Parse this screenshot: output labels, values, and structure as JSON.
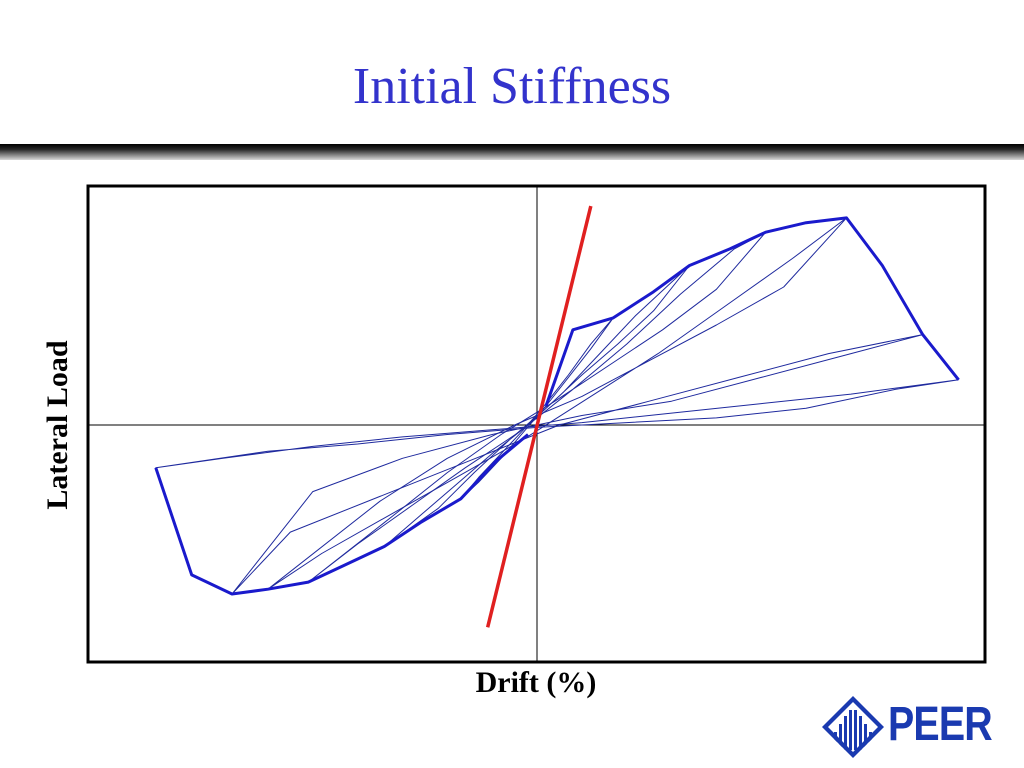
{
  "slide": {
    "title": "Initial Stiffness"
  },
  "logo": {
    "text": "PEER",
    "color": "#1a3ab0"
  },
  "colors": {
    "title": "#3333cc",
    "hysteresis": "#1f2a9e",
    "envelope": "#1a1acc",
    "stiffness_line": "#e02020",
    "axes": "#000000"
  },
  "chart_data": {
    "type": "line",
    "xlabel": "Drift (%)",
    "ylabel": "Lateral Load",
    "xlim": [
      -1,
      1
    ],
    "ylim": [
      -1,
      1
    ],
    "grid": false,
    "units_note": "normalized",
    "series": [
      {
        "role": "envelope-positive",
        "x": [
          0.02,
          0.08,
          0.17,
          0.26,
          0.34,
          0.43,
          0.51,
          0.6,
          0.69,
          0.77,
          0.86,
          0.94
        ],
        "y": [
          0.08,
          0.4,
          0.45,
          0.56,
          0.67,
          0.74,
          0.81,
          0.85,
          0.87,
          0.67,
          0.38,
          0.19
        ]
      },
      {
        "role": "envelope-negative",
        "x": [
          -0.85,
          -0.77,
          -0.68,
          -0.6,
          -0.51,
          -0.43,
          -0.34,
          -0.26,
          -0.17,
          -0.09,
          -0.02
        ],
        "y": [
          -0.18,
          -0.63,
          -0.71,
          -0.69,
          -0.66,
          -0.59,
          -0.51,
          -0.41,
          -0.31,
          -0.15,
          -0.04
        ]
      },
      {
        "role": "hysteresis-loop",
        "x": [
          0.94,
          0.8,
          0.6,
          0.4,
          0.2,
          0,
          -0.2,
          -0.4,
          -0.6,
          -0.85,
          -0.7,
          -0.5,
          -0.3,
          -0.1,
          0.1,
          0.3,
          0.5,
          0.7,
          0.94
        ],
        "y": [
          0.19,
          0.15,
          0.07,
          0.03,
          0.01,
          -0.01,
          -0.04,
          -0.08,
          -0.11,
          -0.18,
          -0.14,
          -0.09,
          -0.05,
          -0.02,
          0.01,
          0.05,
          0.09,
          0.13,
          0.19
        ]
      },
      {
        "role": "hysteresis-loop",
        "x": [
          0.86,
          0.7,
          0.5,
          0.3,
          0.1,
          -0.1,
          -0.3,
          -0.5,
          -0.68,
          -0.55,
          -0.35,
          -0.15,
          0.05,
          0.25,
          0.45,
          0.65,
          0.86
        ],
        "y": [
          0.38,
          0.3,
          0.2,
          0.1,
          0.04,
          -0.04,
          -0.14,
          -0.28,
          -0.71,
          -0.45,
          -0.3,
          -0.15,
          0,
          0.1,
          0.2,
          0.3,
          0.38
        ]
      },
      {
        "role": "hysteresis-loop",
        "x": [
          0.69,
          0.55,
          0.4,
          0.25,
          0.1,
          -0.05,
          -0.2,
          -0.35,
          -0.6,
          -0.48,
          -0.33,
          -0.18,
          -0.03,
          0.12,
          0.27,
          0.42,
          0.57,
          0.69
        ],
        "y": [
          0.87,
          0.58,
          0.42,
          0.27,
          0.12,
          0,
          -0.14,
          -0.32,
          -0.69,
          -0.54,
          -0.38,
          -0.22,
          -0.06,
          0.12,
          0.3,
          0.5,
          0.7,
          0.87
        ]
      },
      {
        "role": "hysteresis-loop",
        "x": [
          0.51,
          0.4,
          0.28,
          0.16,
          0.04,
          -0.08,
          -0.2,
          -0.32,
          -0.51,
          -0.4,
          -0.28,
          -0.16,
          -0.04,
          0.08,
          0.2,
          0.32,
          0.44,
          0.51
        ],
        "y": [
          0.81,
          0.57,
          0.4,
          0.25,
          0.1,
          -0.04,
          -0.2,
          -0.38,
          -0.66,
          -0.5,
          -0.34,
          -0.18,
          -0.03,
          0.15,
          0.34,
          0.55,
          0.74,
          0.81
        ]
      },
      {
        "role": "hysteresis-loop",
        "x": [
          0.34,
          0.26,
          0.18,
          0.1,
          0.02,
          -0.06,
          -0.14,
          -0.22,
          -0.34,
          -0.26,
          -0.18,
          -0.1,
          -0.02,
          0.06,
          0.14,
          0.22,
          0.3,
          0.34
        ],
        "y": [
          0.67,
          0.48,
          0.34,
          0.21,
          0.07,
          -0.06,
          -0.2,
          -0.35,
          -0.51,
          -0.38,
          -0.25,
          -0.12,
          0,
          0.14,
          0.3,
          0.46,
          0.6,
          0.67
        ]
      },
      {
        "role": "hysteresis-loop",
        "x": [
          0.17,
          0.12,
          0.07,
          0.02,
          -0.03,
          -0.08,
          -0.13,
          -0.17,
          -0.13,
          -0.08,
          -0.03,
          0.02,
          0.07,
          0.12,
          0.17
        ],
        "y": [
          0.45,
          0.32,
          0.2,
          0.08,
          -0.03,
          -0.14,
          -0.24,
          -0.31,
          -0.22,
          -0.12,
          -0.02,
          0.09,
          0.21,
          0.34,
          0.45
        ]
      }
    ],
    "annotations": [
      {
        "role": "initial-stiffness-line",
        "x": [
          -0.11,
          0.12
        ],
        "y": [
          -0.85,
          0.92
        ]
      }
    ]
  }
}
